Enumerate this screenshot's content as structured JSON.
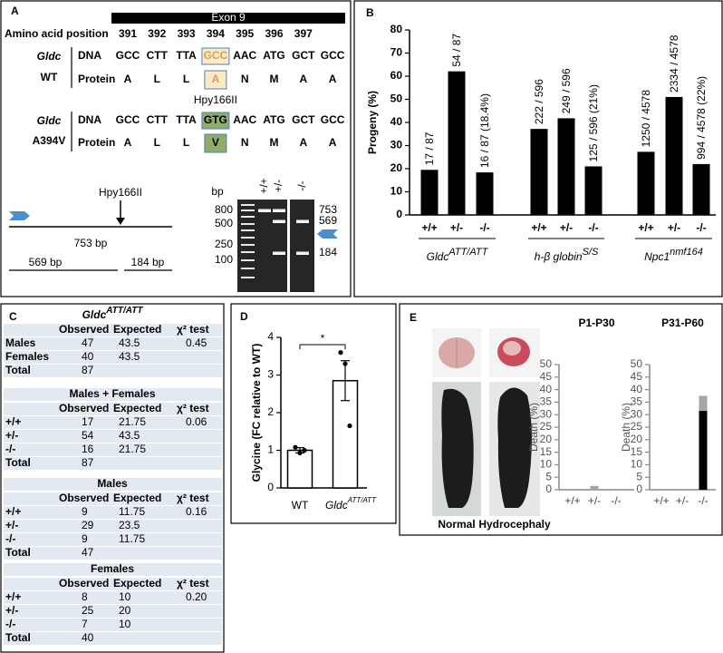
{
  "panel_a": {
    "label": "A",
    "exon": "Exon 9",
    "position_label": "Amino acid position",
    "positions": [
      "391",
      "392",
      "393",
      "394",
      "395",
      "396",
      "397"
    ],
    "wt": {
      "gene": "Gldc",
      "allele": "WT",
      "dna_label": "DNA",
      "protein_label": "Protein",
      "dna": [
        "GCC",
        "CTT",
        "TTA",
        "GCC",
        "AAC",
        "ATG",
        "GCT",
        "GCC"
      ],
      "protein": [
        "A",
        "L",
        "L",
        "A",
        "N",
        "M",
        "A",
        "A"
      ]
    },
    "mutant": {
      "gene": "Gldc",
      "allele": "A394V",
      "enzyme": "Hpy166II",
      "dna_label": "DNA",
      "protein_label": "Protein",
      "dna": [
        "GCC",
        "CTT",
        "TTA",
        "GTG",
        "AAC",
        "ATG",
        "GCT",
        "GCC"
      ],
      "protein": [
        "A",
        "L",
        "L",
        "V",
        "N",
        "M",
        "A",
        "A"
      ]
    },
    "map": {
      "enzyme": "Hpy166II",
      "full": "753 bp",
      "left": "569 bp",
      "right": "184 bp"
    },
    "gel": {
      "unit": "bp",
      "ladder": [
        "800",
        "500",
        "250",
        "100"
      ],
      "lanes": [
        "+/+",
        "+/-",
        "-/-"
      ],
      "bands": [
        "753",
        "569",
        "184"
      ]
    }
  },
  "chart_data": [
    {
      "panel": "B",
      "type": "bar",
      "ylabel": "Progeny (%)",
      "ylim": [
        0,
        80
      ],
      "yticks": [
        0,
        10,
        20,
        30,
        40,
        50,
        60,
        70,
        80
      ],
      "categories": [
        "+/+",
        "+/-",
        "-/-",
        "+/+",
        "+/-",
        "-/-",
        "+/+",
        "+/-",
        "-/-"
      ],
      "groups": [
        {
          "name": "Gldc",
          "sup": "ATT/ATT"
        },
        {
          "name": "h-β globin",
          "sup": "S/S"
        },
        {
          "name": "Npc1",
          "sup": "nmf164"
        }
      ],
      "values": [
        19.5,
        62.1,
        18.4,
        37.2,
        41.8,
        21,
        27.3,
        51.0,
        22
      ],
      "value_labels": [
        "17 / 87",
        "54 / 87",
        "16 / 87 (18.4%)",
        "222 / 596",
        "249 / 596",
        "125 / 596 (21%)",
        "1250 / 4578",
        "2334 / 4578",
        "994 / 4578 (22%)"
      ],
      "color": "#000000"
    },
    {
      "panel": "D",
      "type": "bar",
      "ylabel": "Glycine (FC relative to WT)",
      "ylim": [
        0,
        4
      ],
      "yticks": [
        0,
        1,
        2,
        3,
        4
      ],
      "categories": [
        "WT",
        "Gldc"
      ],
      "category_sup": "ATT/ATT",
      "values": [
        1.0,
        2.85
      ],
      "errors": [
        0.07,
        0.53
      ],
      "points": [
        [
          1.08,
          0.93,
          1.0
        ],
        [
          3.6,
          3.3,
          1.65
        ]
      ],
      "annotation": "*",
      "color": "#ffffff"
    },
    {
      "type": "bar",
      "stacked": true,
      "title": "P1-P30",
      "ylabel": "Death (%)",
      "ylim": [
        0,
        50
      ],
      "yticks": [
        0,
        5,
        10,
        15,
        20,
        25,
        30,
        35,
        40,
        45,
        50
      ],
      "categories": [
        "+/+",
        "+/-",
        "-/-"
      ],
      "series": [
        {
          "color": "#000000",
          "values": [
            0,
            0,
            0
          ]
        },
        {
          "color": "#a6a6a6",
          "values": [
            0,
            1.5,
            0
          ]
        }
      ]
    },
    {
      "type": "bar",
      "stacked": true,
      "title": "P31-P60",
      "ylabel": "Death (%)",
      "ylim": [
        0,
        50
      ],
      "yticks": [
        0,
        5,
        10,
        15,
        20,
        25,
        30,
        35,
        40,
        45,
        50
      ],
      "categories": [
        "+/+",
        "+/-",
        "-/-"
      ],
      "series": [
        {
          "color": "#000000",
          "values": [
            0,
            0,
            31.5
          ]
        },
        {
          "color": "#a6a6a6",
          "values": [
            0,
            0,
            6
          ]
        }
      ]
    }
  ],
  "panel_c": {
    "label": "C",
    "title": "Gldc",
    "title_sup": "ATT/ATT",
    "sections": [
      {
        "header": [
          "Observed",
          "Expected",
          "χ² test"
        ],
        "rows": [
          [
            "Males",
            47,
            43.5,
            0.45
          ],
          [
            "Females",
            40,
            43.5
          ],
          [
            "Total",
            87
          ]
        ]
      },
      {
        "title": "Males + Females",
        "header": [
          "Observed",
          "Expected",
          "χ² test"
        ],
        "rows": [
          [
            "+/+",
            17,
            21.75,
            0.06
          ],
          [
            "+/-",
            54,
            43.5
          ],
          [
            "-/-",
            16,
            21.75
          ],
          [
            "Total",
            87
          ]
        ]
      },
      {
        "title": "Males",
        "header": [
          "Observed",
          "Expected",
          "χ² test"
        ],
        "rows": [
          [
            "+/+",
            9,
            11.75,
            0.16
          ],
          [
            "+/-",
            29,
            23.5
          ],
          [
            "-/-",
            9,
            11.75
          ],
          [
            "Total",
            47
          ]
        ]
      },
      {
        "title": "Females",
        "header": [
          "Observed",
          "Expected",
          "χ² test"
        ],
        "rows": [
          [
            "+/+",
            8,
            10,
            "0.20"
          ],
          [
            "+/-",
            25,
            20
          ],
          [
            "-/-",
            7,
            10
          ],
          [
            "Total",
            40
          ]
        ]
      }
    ]
  },
  "panel_e": {
    "label": "E",
    "photos": [
      "Normal",
      "Hydrocephaly"
    ]
  }
}
